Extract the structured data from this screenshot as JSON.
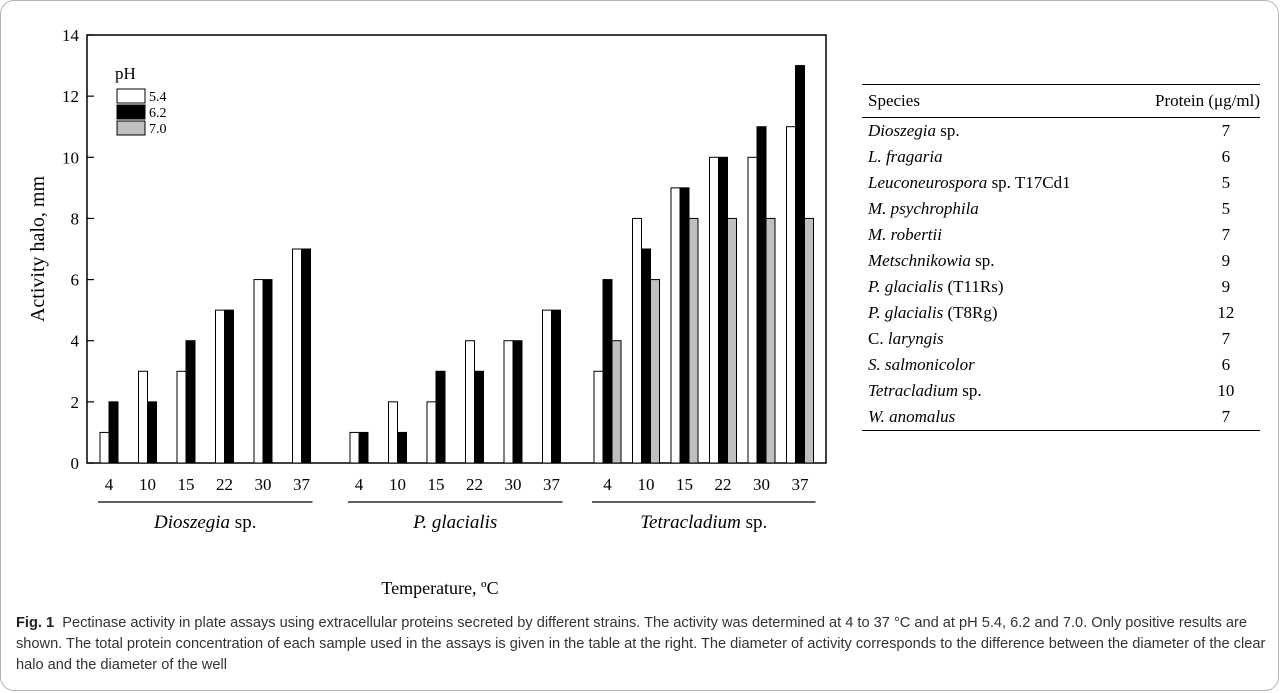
{
  "chart_data": {
    "type": "bar",
    "ylabel": "Activity halo, mm",
    "xlabel": "Temperature, ºC",
    "ylim": [
      0,
      14
    ],
    "yticks": [
      0,
      2,
      4,
      6,
      8,
      10,
      12,
      14
    ],
    "legend": {
      "title": "pH",
      "placement": "top-left"
    },
    "series_colors": [
      "#ffffff",
      "#000000",
      "#c0c0c0"
    ],
    "groups": [
      {
        "italic": "Dioszegia",
        "suffix": " sp.",
        "categories": [
          "4",
          "10",
          "15",
          "22",
          "30",
          "37"
        ],
        "series": [
          {
            "name": "5.4",
            "values": [
              1,
              3,
              3,
              5,
              6,
              7
            ]
          },
          {
            "name": "6.2",
            "values": [
              2,
              2,
              4,
              5,
              6,
              7
            ]
          }
        ]
      },
      {
        "italic": "P. glacialis",
        "suffix": "",
        "categories": [
          "4",
          "10",
          "15",
          "22",
          "30",
          "37"
        ],
        "series": [
          {
            "name": "5.4",
            "values": [
              1,
              2,
              2,
              4,
              4,
              5
            ]
          },
          {
            "name": "6.2",
            "values": [
              1,
              1,
              3,
              3,
              4,
              5
            ]
          }
        ]
      },
      {
        "italic": "Tetracladium",
        "suffix": " sp.",
        "categories": [
          "4",
          "10",
          "15",
          "22",
          "30",
          "37"
        ],
        "series": [
          {
            "name": "5.4",
            "values": [
              3,
              8,
              9,
              10,
              10,
              11
            ]
          },
          {
            "name": "6.2",
            "values": [
              6,
              7,
              9,
              10,
              11,
              13
            ]
          },
          {
            "name": "7.0",
            "values": [
              4,
              6,
              8,
              8,
              8,
              8
            ]
          }
        ]
      }
    ]
  },
  "table": {
    "header_species": "Species",
    "header_protein": "Protein (μg/ml)",
    "rows": [
      {
        "italic": "Dioszegia",
        "rest": " sp.",
        "protein": "7"
      },
      {
        "italic": "L. fragaria",
        "rest": "",
        "protein": "6"
      },
      {
        "italic": "Leuconeurospora",
        "rest": " sp. T17Cd1",
        "protein": "5"
      },
      {
        "italic": "M. psychrophila",
        "rest": "",
        "protein": "5"
      },
      {
        "italic": "M. robertii",
        "rest": "",
        "protein": "7"
      },
      {
        "italic": "Metschnikowia",
        "rest": " sp.",
        "protein": "9"
      },
      {
        "italic": "P. glacialis",
        "rest": " (T11Rs)",
        "protein": "9"
      },
      {
        "italic": "P. glacialis",
        "rest": " (T8Rg)",
        "protein": "12"
      },
      {
        "lead": "C. ",
        "italic": "laryngis",
        "rest": "",
        "protein": "7"
      },
      {
        "italic": "S. salmonicolor",
        "rest": "",
        "protein": "6"
      },
      {
        "italic": "Tetracladium",
        "rest": " sp.",
        "protein": "10"
      },
      {
        "italic": "W. anomalus",
        "rest": "",
        "protein": "7"
      }
    ]
  },
  "caption": {
    "label": "Fig. 1",
    "text": "Pectinase activity in plate assays using extracellular proteins secreted by different strains. The activity was determined at 4 to 37 °C and at pH 5.4, 6.2 and 7.0. Only positive results are shown. The total protein concentration of each sample used in the assays is given in the table at the right. The diameter of activity corresponds to the difference between the diameter of the clear halo and the diameter of the well"
  }
}
